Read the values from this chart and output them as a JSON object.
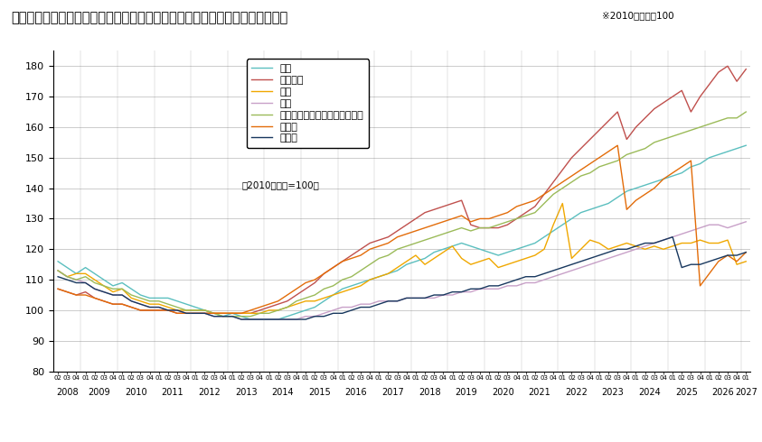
{
  "title": "＜不動産価格指数（商業用不動産）（令和６年第３四半期分・季節調整値）＞",
  "title_suffix": "※2010年平均＝100",
  "note": "（2010年平均=100）",
  "ylim": [
    80,
    185
  ],
  "yticks": [
    80,
    90,
    100,
    110,
    120,
    130,
    140,
    150,
    160,
    170,
    180
  ],
  "series": {
    "店舗": {
      "color": "#5bbfbf",
      "data": [
        116,
        114,
        112,
        114,
        112,
        110,
        108,
        109,
        107,
        105,
        104,
        104,
        104,
        103,
        102,
        101,
        100,
        99,
        98,
        99,
        98,
        97,
        97,
        97,
        97,
        98,
        99,
        100,
        101,
        103,
        105,
        107,
        108,
        109,
        110,
        111,
        112,
        113,
        115,
        116,
        117,
        119,
        120,
        121,
        122,
        121,
        120,
        119,
        118,
        119,
        120,
        121,
        122,
        124,
        126,
        128,
        130,
        132,
        133,
        134,
        135,
        137,
        139,
        140,
        141,
        142,
        143,
        144,
        145,
        147,
        148,
        150,
        151,
        152,
        153,
        154
      ]
    },
    "オフィス": {
      "color": "#c0504d",
      "data": [
        107,
        106,
        105,
        106,
        104,
        103,
        102,
        102,
        101,
        100,
        100,
        100,
        100,
        99,
        99,
        99,
        99,
        99,
        99,
        99,
        99,
        99,
        100,
        101,
        102,
        103,
        105,
        107,
        109,
        112,
        114,
        116,
        118,
        120,
        122,
        123,
        124,
        126,
        128,
        130,
        132,
        133,
        134,
        135,
        136,
        128,
        127,
        127,
        127,
        128,
        130,
        132,
        134,
        138,
        142,
        146,
        150,
        153,
        156,
        159,
        162,
        165,
        156,
        160,
        163,
        166,
        168,
        170,
        172,
        165,
        170,
        174,
        178,
        180,
        175,
        179
      ]
    },
    "倉庫": {
      "color": "#f0a800",
      "data": [
        113,
        111,
        112,
        112,
        110,
        108,
        106,
        107,
        104,
        103,
        102,
        102,
        101,
        100,
        100,
        100,
        100,
        99,
        99,
        99,
        99,
        99,
        99,
        100,
        100,
        101,
        102,
        103,
        103,
        104,
        105,
        106,
        107,
        108,
        110,
        111,
        112,
        114,
        116,
        118,
        115,
        117,
        119,
        121,
        117,
        115,
        116,
        117,
        114,
        115,
        116,
        117,
        118,
        120,
        128,
        135,
        117,
        120,
        123,
        122,
        120,
        121,
        122,
        121,
        120,
        121,
        120,
        121,
        122,
        122,
        123,
        122,
        122,
        123,
        115,
        116
      ]
    },
    "工場": {
      "color": "#c8a0c8",
      "data": [
        113,
        111,
        110,
        109,
        107,
        106,
        105,
        105,
        103,
        102,
        101,
        101,
        100,
        100,
        99,
        99,
        99,
        98,
        98,
        98,
        97,
        97,
        97,
        97,
        97,
        97,
        97,
        98,
        98,
        99,
        100,
        101,
        101,
        102,
        102,
        103,
        103,
        103,
        104,
        104,
        104,
        104,
        105,
        105,
        106,
        106,
        107,
        107,
        107,
        108,
        108,
        109,
        109,
        110,
        111,
        112,
        113,
        114,
        115,
        116,
        117,
        118,
        119,
        120,
        121,
        122,
        123,
        124,
        125,
        126,
        127,
        128,
        128,
        127,
        128,
        129
      ]
    },
    "マンション・アパート（一棟）": {
      "color": "#9bbb59",
      "data": [
        113,
        111,
        110,
        111,
        109,
        108,
        107,
        107,
        105,
        104,
        103,
        103,
        102,
        101,
        100,
        100,
        100,
        99,
        98,
        98,
        98,
        98,
        99,
        99,
        100,
        101,
        103,
        104,
        105,
        107,
        108,
        110,
        111,
        113,
        115,
        117,
        118,
        120,
        121,
        122,
        123,
        124,
        125,
        126,
        127,
        126,
        127,
        127,
        128,
        129,
        130,
        131,
        132,
        135,
        138,
        140,
        142,
        144,
        145,
        147,
        148,
        149,
        151,
        152,
        153,
        155,
        156,
        157,
        158,
        159,
        160,
        161,
        162,
        163,
        163,
        165
      ]
    },
    "商業地": {
      "color": "#e36c09",
      "data": [
        107,
        106,
        105,
        105,
        104,
        103,
        102,
        102,
        101,
        100,
        100,
        100,
        100,
        99,
        99,
        99,
        99,
        99,
        99,
        99,
        99,
        100,
        101,
        102,
        103,
        105,
        107,
        109,
        110,
        112,
        114,
        116,
        117,
        118,
        120,
        121,
        122,
        124,
        125,
        126,
        127,
        128,
        129,
        130,
        131,
        129,
        130,
        130,
        131,
        132,
        134,
        135,
        136,
        138,
        140,
        142,
        144,
        146,
        148,
        150,
        152,
        154,
        133,
        136,
        138,
        140,
        143,
        145,
        147,
        149,
        108,
        112,
        116,
        118,
        116,
        119
      ]
    },
    "工業地": {
      "color": "#17375e",
      "data": [
        111,
        110,
        109,
        109,
        107,
        106,
        105,
        105,
        103,
        102,
        101,
        101,
        100,
        100,
        99,
        99,
        99,
        98,
        98,
        98,
        97,
        97,
        97,
        97,
        97,
        97,
        97,
        97,
        98,
        98,
        99,
        99,
        100,
        101,
        101,
        102,
        103,
        103,
        104,
        104,
        104,
        105,
        105,
        106,
        106,
        107,
        107,
        108,
        108,
        109,
        110,
        111,
        111,
        112,
        113,
        114,
        115,
        116,
        117,
        118,
        119,
        120,
        120,
        121,
        122,
        122,
        123,
        124,
        114,
        115,
        115,
        116,
        117,
        118,
        118,
        119
      ]
    }
  }
}
